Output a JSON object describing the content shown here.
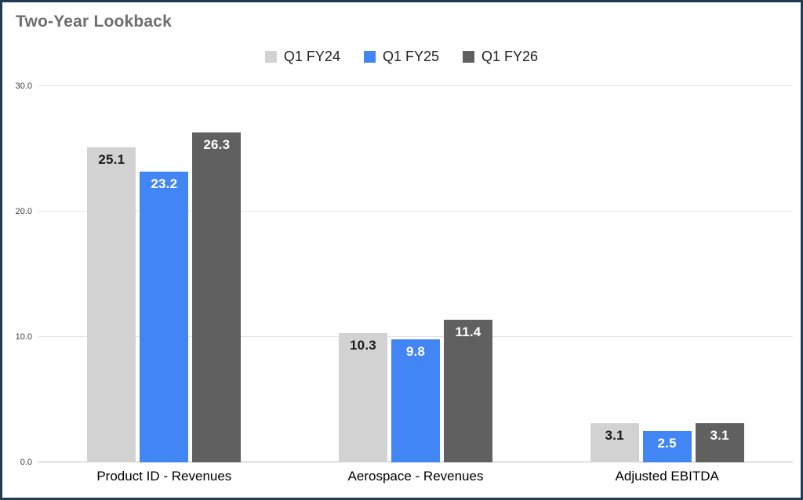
{
  "chart_data": {
    "type": "bar",
    "title": "Two-Year Lookback",
    "categories": [
      "Product ID - Revenues",
      "Aerospace - Revenues",
      "Adjusted EBITDA"
    ],
    "series": [
      {
        "name": "Q1 FY24",
        "color": "#d2d2d2",
        "label_color": "#1a1a1a",
        "values": [
          25.1,
          10.3,
          3.1
        ]
      },
      {
        "name": "Q1 FY25",
        "color": "#4285f4",
        "label_color": "#ffffff",
        "values": [
          23.2,
          9.8,
          2.5
        ]
      },
      {
        "name": "Q1 FY26",
        "color": "#606060",
        "label_color": "#ffffff",
        "values": [
          26.3,
          11.4,
          3.1
        ]
      }
    ],
    "ylim": [
      0,
      30
    ],
    "yticks": [
      {
        "value": 0,
        "label": "0.0"
      },
      {
        "value": 10,
        "label": "10.0"
      },
      {
        "value": 20,
        "label": "20.0"
      },
      {
        "value": 30,
        "label": "30.0"
      }
    ],
    "grid": true,
    "legend_position": "top"
  },
  "frame": {
    "border_color": "#1e3c52",
    "title_color": "#6e6e6e"
  }
}
